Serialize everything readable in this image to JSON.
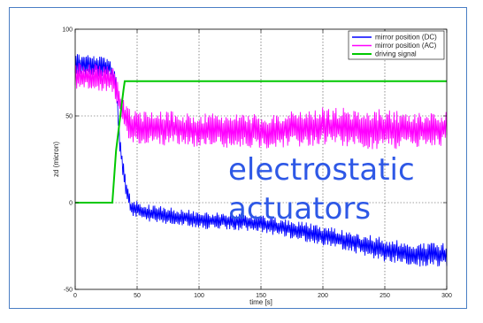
{
  "chart_data": {
    "type": "line",
    "title": "",
    "xlabel": "time [s]",
    "ylabel": "zd (micron)",
    "xlim": [
      0,
      300
    ],
    "ylim": [
      -50,
      100
    ],
    "xticks": [
      0,
      50,
      100,
      150,
      200,
      250,
      300
    ],
    "yticks": [
      -50,
      0,
      50,
      100
    ],
    "grid": true,
    "legend_position": "top-right",
    "series": [
      {
        "name": "mirror position (DC)",
        "color": "#0000ff",
        "style": "noisy",
        "noise_amplitude": [
          6,
          6,
          6,
          6,
          6,
          5,
          5,
          5,
          5,
          6,
          6,
          7,
          7,
          7
        ],
        "x": [
          0,
          28,
          33,
          36,
          40,
          45,
          60,
          100,
          150,
          200,
          220,
          250,
          280,
          300
        ],
        "y": [
          80,
          78,
          70,
          35,
          12,
          -3,
          -6,
          -10,
          -12,
          -19,
          -22,
          -27,
          -30,
          -30
        ]
      },
      {
        "name": "mirror position (AC)",
        "color": "#ff00ff",
        "style": "noisy",
        "noise_amplitude": [
          8,
          8,
          8,
          8,
          8,
          10,
          10,
          10,
          10,
          11,
          12,
          10,
          10
        ],
        "x": [
          0,
          30,
          33,
          36,
          40,
          45,
          70,
          100,
          150,
          200,
          250,
          280,
          300
        ],
        "y": [
          73,
          71,
          66,
          58,
          50,
          43,
          43,
          42,
          41,
          44,
          42,
          42,
          43
        ]
      },
      {
        "name": "driving signal",
        "color": "#00c800",
        "style": "smooth",
        "x": [
          0,
          30,
          33,
          39,
          40,
          300
        ],
        "y": [
          0,
          0,
          30,
          65,
          70,
          70
        ]
      }
    ]
  },
  "overlay": {
    "line1": "electrostatic",
    "line2": "actuators"
  }
}
